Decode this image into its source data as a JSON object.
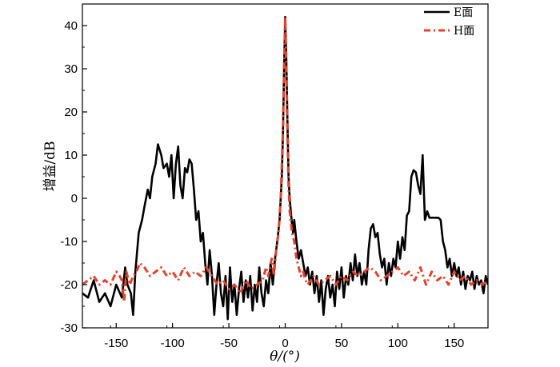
{
  "chart_data": {
    "type": "line",
    "xlabel": "θ/(°)",
    "ylabel": "增益/dB",
    "xlim": [
      -180,
      180
    ],
    "ylim": [
      -30,
      45
    ],
    "xticks": [
      -150,
      -100,
      -50,
      0,
      50,
      100,
      150
    ],
    "yticks": [
      -30,
      -20,
      -10,
      0,
      10,
      20,
      30,
      40
    ],
    "grid": false,
    "legend_position": "top-right",
    "series": [
      {
        "name": "E面",
        "color": "#000000",
        "style": "solid",
        "points": [
          [
            -180,
            -22
          ],
          [
            -175,
            -23
          ],
          [
            -170,
            -19
          ],
          [
            -165,
            -24
          ],
          [
            -160,
            -22
          ],
          [
            -155,
            -25
          ],
          [
            -150,
            -20
          ],
          [
            -145,
            -23
          ],
          [
            -142,
            -16
          ],
          [
            -140,
            -20
          ],
          [
            -137,
            -22
          ],
          [
            -135,
            -27
          ],
          [
            -133,
            -17
          ],
          [
            -130,
            -8
          ],
          [
            -127,
            -5
          ],
          [
            -125,
            -2
          ],
          [
            -122,
            2
          ],
          [
            -120,
            0
          ],
          [
            -118,
            5
          ],
          [
            -115,
            8
          ],
          [
            -113,
            12.5
          ],
          [
            -110,
            10
          ],
          [
            -108,
            7
          ],
          [
            -105,
            8
          ],
          [
            -103,
            5
          ],
          [
            -101,
            10
          ],
          [
            -99,
            0
          ],
          [
            -97,
            8
          ],
          [
            -95,
            12
          ],
          [
            -93,
            3
          ],
          [
            -91,
            0
          ],
          [
            -89,
            7
          ],
          [
            -87,
            6
          ],
          [
            -85,
            9
          ],
          [
            -83,
            8
          ],
          [
            -81,
            2
          ],
          [
            -79,
            -5
          ],
          [
            -77,
            -3
          ],
          [
            -75,
            -10
          ],
          [
            -73,
            -8
          ],
          [
            -71,
            -15
          ],
          [
            -69,
            -20
          ],
          [
            -67,
            -12
          ],
          [
            -65,
            -18
          ],
          [
            -63,
            -27
          ],
          [
            -61,
            -20
          ],
          [
            -59,
            -15
          ],
          [
            -57,
            -22
          ],
          [
            -55,
            -25
          ],
          [
            -53,
            -18
          ],
          [
            -51,
            -28
          ],
          [
            -49,
            -16
          ],
          [
            -47,
            -24
          ],
          [
            -45,
            -20
          ],
          [
            -43,
            -27
          ],
          [
            -41,
            -21
          ],
          [
            -39,
            -17
          ],
          [
            -37,
            -24
          ],
          [
            -35,
            -19
          ],
          [
            -33,
            -23
          ],
          [
            -31,
            -18
          ],
          [
            -29,
            -26
          ],
          [
            -27,
            -20
          ],
          [
            -25,
            -24
          ],
          [
            -23,
            -16
          ],
          [
            -21,
            -22
          ],
          [
            -19,
            -25
          ],
          [
            -17,
            -19
          ],
          [
            -15,
            -22
          ],
          [
            -13,
            -15
          ],
          [
            -11,
            -20
          ],
          [
            -9,
            -14
          ],
          [
            -7,
            -10
          ],
          [
            -5,
            -5
          ],
          [
            -3,
            5
          ],
          [
            -2,
            15
          ],
          [
            -1,
            30
          ],
          [
            0,
            42
          ],
          [
            1,
            32
          ],
          [
            2,
            18
          ],
          [
            3,
            5
          ],
          [
            4,
            0
          ],
          [
            5,
            -3
          ],
          [
            6,
            -6
          ],
          [
            7,
            -8
          ],
          [
            8,
            -5
          ],
          [
            10,
            -10
          ],
          [
            12,
            -14
          ],
          [
            14,
            -12
          ],
          [
            16,
            -15
          ],
          [
            18,
            -18
          ],
          [
            20,
            -16
          ],
          [
            22,
            -20
          ],
          [
            24,
            -17
          ],
          [
            26,
            -22
          ],
          [
            28,
            -18
          ],
          [
            30,
            -24
          ],
          [
            32,
            -19
          ],
          [
            34,
            -27
          ],
          [
            36,
            -21
          ],
          [
            38,
            -18
          ],
          [
            40,
            -23
          ],
          [
            42,
            -20
          ],
          [
            44,
            -25
          ],
          [
            46,
            -17
          ],
          [
            48,
            -21
          ],
          [
            50,
            -16
          ],
          [
            52,
            -23
          ],
          [
            54,
            -18
          ],
          [
            56,
            -20
          ],
          [
            58,
            -15
          ],
          [
            60,
            -19
          ],
          [
            62,
            -13
          ],
          [
            64,
            -18
          ],
          [
            66,
            -15
          ],
          [
            68,
            -20
          ],
          [
            70,
            -17
          ],
          [
            72,
            -20
          ],
          [
            74,
            -12
          ],
          [
            76,
            -7
          ],
          [
            78,
            -6
          ],
          [
            80,
            -9
          ],
          [
            82,
            -8
          ],
          [
            84,
            -13
          ],
          [
            86,
            -16
          ],
          [
            88,
            -14
          ],
          [
            90,
            -20
          ],
          [
            92,
            -15
          ],
          [
            94,
            -18
          ],
          [
            96,
            -14
          ],
          [
            98,
            -16
          ],
          [
            100,
            -10
          ],
          [
            102,
            -14
          ],
          [
            104,
            -9
          ],
          [
            106,
            -12
          ],
          [
            108,
            -4
          ],
          [
            110,
            -3
          ],
          [
            112,
            5
          ],
          [
            114,
            6.5
          ],
          [
            116,
            6
          ],
          [
            118,
            3
          ],
          [
            120,
            1
          ],
          [
            122,
            10
          ],
          [
            124,
            -5
          ],
          [
            126,
            -3
          ],
          [
            128,
            -4.5
          ],
          [
            132,
            -4.5
          ],
          [
            136,
            -4.5
          ],
          [
            138,
            -5
          ],
          [
            140,
            -10
          ],
          [
            142,
            -12
          ],
          [
            144,
            -16
          ],
          [
            146,
            -14
          ],
          [
            148,
            -18
          ],
          [
            150,
            -15
          ],
          [
            152,
            -18
          ],
          [
            154,
            -16
          ],
          [
            156,
            -20
          ],
          [
            158,
            -17
          ],
          [
            160,
            -21
          ],
          [
            162,
            -18
          ],
          [
            164,
            -19
          ],
          [
            166,
            -17
          ],
          [
            168,
            -21
          ],
          [
            170,
            -18
          ],
          [
            172,
            -20
          ],
          [
            174,
            -19
          ],
          [
            176,
            -22
          ],
          [
            178,
            -18
          ],
          [
            180,
            -20
          ]
        ]
      },
      {
        "name": "H面",
        "color": "#E8402A",
        "style": "dash-dot",
        "points": [
          [
            -180,
            -20
          ],
          [
            -175,
            -19
          ],
          [
            -170,
            -18
          ],
          [
            -165,
            -20
          ],
          [
            -160,
            -19
          ],
          [
            -155,
            -20
          ],
          [
            -150,
            -17
          ],
          [
            -147,
            -18
          ],
          [
            -145,
            -19
          ],
          [
            -143,
            -24
          ],
          [
            -141,
            -17
          ],
          [
            -138,
            -20
          ],
          [
            -135,
            -18
          ],
          [
            -132,
            -17
          ],
          [
            -129,
            -15
          ],
          [
            -125,
            -16
          ],
          [
            -120,
            -18
          ],
          [
            -115,
            -17
          ],
          [
            -110,
            -16
          ],
          [
            -105,
            -18
          ],
          [
            -100,
            -17
          ],
          [
            -95,
            -19
          ],
          [
            -90,
            -16
          ],
          [
            -85,
            -18
          ],
          [
            -80,
            -17
          ],
          [
            -75,
            -18
          ],
          [
            -70,
            -16
          ],
          [
            -65,
            -18
          ],
          [
            -60,
            -20
          ],
          [
            -55,
            -19
          ],
          [
            -50,
            -21
          ],
          [
            -45,
            -20
          ],
          [
            -40,
            -22
          ],
          [
            -35,
            -19
          ],
          [
            -30,
            -21
          ],
          [
            -25,
            -20
          ],
          [
            -20,
            -19
          ],
          [
            -17,
            -16
          ],
          [
            -15,
            -18
          ],
          [
            -12,
            -14
          ],
          [
            -10,
            -18
          ],
          [
            -8,
            -12
          ],
          [
            -6,
            -8
          ],
          [
            -4,
            0
          ],
          [
            -2,
            16
          ],
          [
            -1,
            30
          ],
          [
            0,
            42
          ],
          [
            1,
            30
          ],
          [
            2,
            15
          ],
          [
            3,
            3
          ],
          [
            4,
            -3
          ],
          [
            6,
            -8
          ],
          [
            8,
            -10
          ],
          [
            10,
            -14
          ],
          [
            12,
            -16
          ],
          [
            14,
            -18
          ],
          [
            16,
            -17
          ],
          [
            18,
            -19
          ],
          [
            20,
            -20
          ],
          [
            25,
            -18
          ],
          [
            30,
            -20
          ],
          [
            35,
            -19
          ],
          [
            40,
            -18
          ],
          [
            45,
            -20
          ],
          [
            50,
            -18
          ],
          [
            55,
            -19
          ],
          [
            60,
            -17
          ],
          [
            65,
            -18
          ],
          [
            70,
            -17
          ],
          [
            75,
            -16
          ],
          [
            80,
            -17
          ],
          [
            85,
            -19
          ],
          [
            90,
            -18
          ],
          [
            95,
            -17
          ],
          [
            100,
            -16
          ],
          [
            105,
            -18
          ],
          [
            110,
            -17
          ],
          [
            115,
            -19
          ],
          [
            120,
            -16
          ],
          [
            125,
            -20
          ],
          [
            130,
            -17
          ],
          [
            135,
            -19
          ],
          [
            140,
            -18
          ],
          [
            145,
            -20
          ],
          [
            150,
            -17
          ],
          [
            155,
            -19
          ],
          [
            160,
            -18
          ],
          [
            165,
            -20
          ],
          [
            170,
            -19
          ],
          [
            175,
            -20
          ],
          [
            180,
            -19
          ]
        ]
      }
    ]
  }
}
